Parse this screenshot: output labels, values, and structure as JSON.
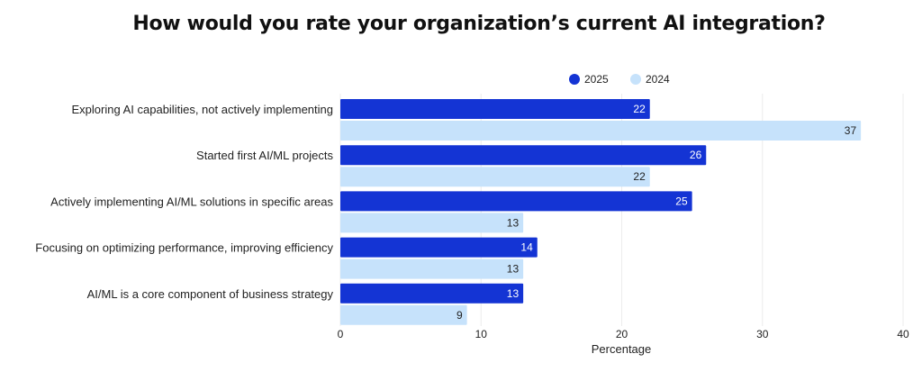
{
  "chart_data": {
    "type": "bar",
    "orientation": "horizontal",
    "title": "How would you rate your organization’s current AI integration?",
    "xlabel": "Percentage",
    "ylabel": "",
    "xlim": [
      0,
      40
    ],
    "xticks": [
      0,
      10,
      20,
      30,
      40
    ],
    "grid": true,
    "legend_position": "top-right",
    "categories": [
      "Exploring AI capabilities, not actively implementing",
      "Started first AI/ML projects",
      "Actively implementing AI/ML solutions in specific areas",
      "Focusing on optimizing performance, improving efficiency",
      "AI/ML is a core component of business strategy"
    ],
    "series": [
      {
        "name": "2025",
        "color": "#1434d4",
        "label_color": "#ffffff",
        "values": [
          22,
          26,
          25,
          14,
          13
        ]
      },
      {
        "name": "2024",
        "color": "#c6e2fb",
        "label_color": "#222222",
        "values": [
          37,
          22,
          13,
          13,
          9
        ]
      }
    ]
  }
}
